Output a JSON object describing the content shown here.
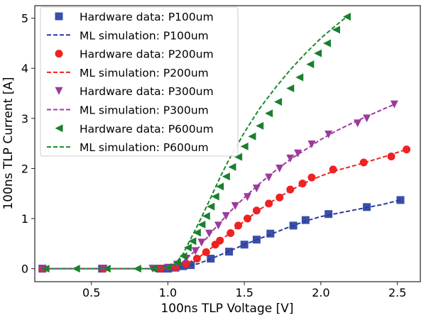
{
  "chart_data": {
    "type": "scatter",
    "title": "",
    "xlabel": "100ns TLP Voltage [V]",
    "ylabel": "100ns TLP Current [A]",
    "xlim": [
      0.13,
      2.65
    ],
    "ylim": [
      -0.26,
      5.25
    ],
    "xticks": [
      "0.5",
      "1.0",
      "1.5",
      "2.0",
      "2.5"
    ],
    "yticks": [
      "0",
      "1",
      "2",
      "3",
      "4",
      "5"
    ],
    "grid": false,
    "legend_position": "top-left",
    "series": [
      {
        "name": "Hardware data: P100um",
        "kind": "marker",
        "marker": "square",
        "color": "#3a4fa8",
        "x": [
          0.18,
          0.57,
          0.95,
          1.0,
          1.05,
          1.1,
          1.15,
          1.28,
          1.4,
          1.5,
          1.58,
          1.67,
          1.82,
          1.9,
          2.05,
          2.3,
          2.52
        ],
        "y": [
          0,
          0,
          0,
          0,
          0.02,
          0.05,
          0.07,
          0.2,
          0.34,
          0.48,
          0.58,
          0.7,
          0.86,
          0.97,
          1.09,
          1.23,
          1.37
        ]
      },
      {
        "name": "ML simulation: P100um",
        "kind": "line",
        "color": "#2b3a9e",
        "x": [
          0.18,
          0.9,
          1.0,
          1.1,
          1.2,
          1.3,
          1.4,
          1.5,
          1.6,
          1.7,
          1.8,
          1.9,
          2.0,
          2.1,
          2.2,
          2.3,
          2.4,
          2.52
        ],
        "y": [
          0,
          0,
          0.01,
          0.04,
          0.1,
          0.22,
          0.35,
          0.48,
          0.6,
          0.72,
          0.84,
          0.95,
          1.04,
          1.1,
          1.16,
          1.22,
          1.28,
          1.37
        ]
      },
      {
        "name": "Hardware data: P200um",
        "kind": "marker",
        "marker": "circle",
        "color": "#ee2222",
        "x": [
          0.18,
          0.58,
          0.95,
          1.05,
          1.12,
          1.19,
          1.25,
          1.31,
          1.34,
          1.41,
          1.46,
          1.52,
          1.58,
          1.66,
          1.73,
          1.8,
          1.88,
          1.94,
          2.08,
          2.28,
          2.46,
          2.56
        ],
        "y": [
          0,
          0,
          0,
          0.03,
          0.1,
          0.2,
          0.33,
          0.48,
          0.56,
          0.71,
          0.86,
          1.0,
          1.16,
          1.3,
          1.42,
          1.58,
          1.7,
          1.82,
          1.98,
          2.12,
          2.24,
          2.38
        ]
      },
      {
        "name": "ML simulation: P200um",
        "kind": "line",
        "color": "#ee2222",
        "x": [
          0.18,
          0.9,
          1.0,
          1.1,
          1.2,
          1.3,
          1.4,
          1.5,
          1.6,
          1.7,
          1.8,
          1.9,
          2.0,
          2.1,
          2.2,
          2.3,
          2.4,
          2.56
        ],
        "y": [
          0,
          0,
          0.01,
          0.07,
          0.22,
          0.45,
          0.7,
          0.95,
          1.18,
          1.38,
          1.56,
          1.72,
          1.85,
          1.96,
          2.04,
          2.13,
          2.22,
          2.38
        ]
      },
      {
        "name": "Hardware data: P300um",
        "kind": "marker",
        "marker": "triangle-down",
        "color": "#9b3a9b",
        "x": [
          0.18,
          0.58,
          0.9,
          1.0,
          1.06,
          1.12,
          1.18,
          1.22,
          1.27,
          1.33,
          1.38,
          1.44,
          1.52,
          1.58,
          1.66,
          1.73,
          1.8,
          1.85,
          1.94,
          2.05,
          2.24,
          2.3,
          2.48
        ],
        "y": [
          0,
          0,
          0,
          0.02,
          0.08,
          0.2,
          0.35,
          0.52,
          0.7,
          0.86,
          1.05,
          1.25,
          1.43,
          1.6,
          1.82,
          2.0,
          2.2,
          2.3,
          2.48,
          2.68,
          2.9,
          3.0,
          3.28
        ]
      },
      {
        "name": "ML simulation: P300um",
        "kind": "line",
        "color": "#a03aa0",
        "x": [
          0.18,
          0.9,
          1.0,
          1.1,
          1.2,
          1.3,
          1.4,
          1.5,
          1.6,
          1.7,
          1.8,
          1.9,
          2.0,
          2.1,
          2.2,
          2.3,
          2.48
        ],
        "y": [
          0,
          0,
          0.02,
          0.14,
          0.42,
          0.78,
          1.12,
          1.42,
          1.7,
          1.95,
          2.18,
          2.38,
          2.58,
          2.75,
          2.9,
          3.04,
          3.28
        ]
      },
      {
        "name": "Hardware data: P600um",
        "kind": "marker",
        "marker": "triangle-left",
        "color": "#1a7f2e",
        "x": [
          0.2,
          0.4,
          0.6,
          0.8,
          0.9,
          1.0,
          1.06,
          1.1,
          1.13,
          1.16,
          1.19,
          1.22,
          1.25,
          1.28,
          1.31,
          1.34,
          1.38,
          1.42,
          1.46,
          1.5,
          1.55,
          1.6,
          1.66,
          1.72,
          1.8,
          1.86,
          1.93,
          1.98,
          2.04,
          2.1,
          2.17
        ],
        "y": [
          0,
          0,
          0,
          0,
          0,
          0.03,
          0.12,
          0.25,
          0.42,
          0.55,
          0.72,
          0.88,
          1.05,
          1.24,
          1.44,
          1.64,
          1.84,
          2.03,
          2.23,
          2.44,
          2.64,
          2.85,
          3.1,
          3.33,
          3.6,
          3.82,
          4.08,
          4.3,
          4.5,
          4.77,
          5.03
        ]
      },
      {
        "name": "ML simulation: P600um",
        "kind": "line",
        "color": "#1a8a2e",
        "x": [
          0.2,
          0.9,
          1.0,
          1.05,
          1.1,
          1.15,
          1.2,
          1.25,
          1.3,
          1.35,
          1.4,
          1.5,
          1.6,
          1.7,
          1.8,
          1.9,
          2.0,
          2.1,
          2.17
        ],
        "y": [
          0,
          0,
          0.03,
          0.1,
          0.3,
          0.6,
          0.9,
          1.22,
          1.55,
          1.88,
          2.18,
          2.72,
          3.2,
          3.6,
          3.97,
          4.3,
          4.6,
          4.86,
          5.03
        ]
      }
    ]
  }
}
